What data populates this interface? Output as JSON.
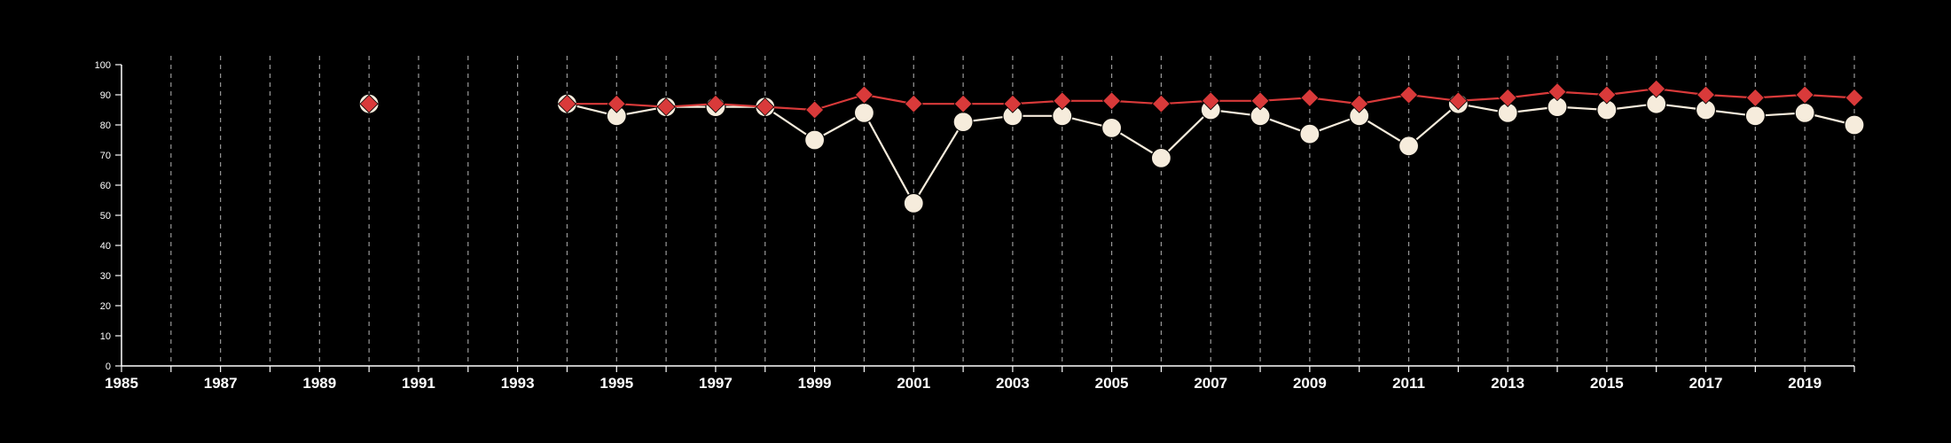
{
  "chart_data": {
    "type": "line",
    "x_ticks": [
      1985,
      1987,
      1989,
      1991,
      1993,
      1995,
      1997,
      1999,
      2001,
      2003,
      2005,
      2007,
      2009,
      2011,
      2013,
      2015,
      2017,
      2019
    ],
    "y_ticks": [
      0,
      10,
      20,
      30,
      40,
      50,
      60,
      70,
      80,
      90,
      100
    ],
    "xlim": [
      1985,
      2020
    ],
    "ylim": [
      0,
      100
    ],
    "grid": "vertical dashed at each year",
    "series": [
      {
        "marker": "circle",
        "color": "#f6ecdc",
        "points": [
          [
            1990,
            87
          ],
          [
            1994,
            87
          ],
          [
            1995,
            83
          ],
          [
            1996,
            86
          ],
          [
            1997,
            86
          ],
          [
            1998,
            86
          ],
          [
            1999,
            75
          ],
          [
            2000,
            84
          ],
          [
            2001,
            54
          ],
          [
            2002,
            81
          ],
          [
            2003,
            83
          ],
          [
            2004,
            83
          ],
          [
            2005,
            79
          ],
          [
            2006,
            69
          ],
          [
            2007,
            85
          ],
          [
            2008,
            83
          ],
          [
            2009,
            77
          ],
          [
            2010,
            83
          ],
          [
            2011,
            73
          ],
          [
            2012,
            87
          ],
          [
            2013,
            84
          ],
          [
            2014,
            86
          ],
          [
            2015,
            85
          ],
          [
            2016,
            87
          ],
          [
            2017,
            85
          ],
          [
            2018,
            83
          ],
          [
            2019,
            84
          ],
          [
            2020,
            80
          ]
        ]
      },
      {
        "marker": "diamond",
        "color": "#d93a3a",
        "points": [
          [
            1990,
            87
          ],
          [
            1994,
            87
          ],
          [
            1995,
            87
          ],
          [
            1996,
            86
          ],
          [
            1997,
            87
          ],
          [
            1998,
            86
          ],
          [
            1999,
            85
          ],
          [
            2000,
            90
          ],
          [
            2001,
            87
          ],
          [
            2002,
            87
          ],
          [
            2003,
            87
          ],
          [
            2004,
            88
          ],
          [
            2005,
            88
          ],
          [
            2006,
            87
          ],
          [
            2007,
            88
          ],
          [
            2008,
            88
          ],
          [
            2009,
            89
          ],
          [
            2010,
            87
          ],
          [
            2011,
            90
          ],
          [
            2012,
            88
          ],
          [
            2013,
            89
          ],
          [
            2014,
            91
          ],
          [
            2015,
            90
          ],
          [
            2016,
            92
          ],
          [
            2017,
            90
          ],
          [
            2018,
            89
          ],
          [
            2019,
            90
          ],
          [
            2020,
            89
          ]
        ]
      }
    ]
  }
}
